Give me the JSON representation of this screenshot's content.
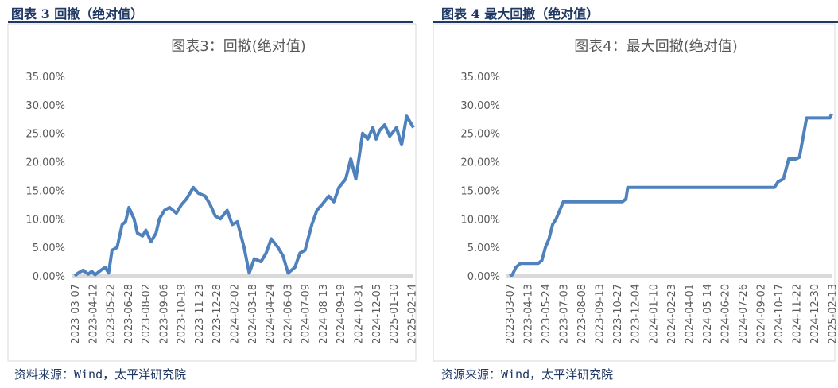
{
  "colors": {
    "header": "#1f3864",
    "line": "#4f81bd",
    "axis": "#d9d9d9",
    "text": "#595959"
  },
  "panels": [
    {
      "figure_title": "图表 3 回撤（绝对值）",
      "source": "资料来源：Wind，太平洋研究院",
      "chart_data": {
        "type": "line",
        "title": "图表3：回撤(绝对值)",
        "y_ticks": [
          "35.00%",
          "30.00%",
          "25.00%",
          "20.00%",
          "15.00%",
          "10.00%",
          "5.00%",
          "0.00%"
        ],
        "ylim": [
          0,
          35
        ],
        "x_ticks": [
          "2023-03-07",
          "2023-04-12",
          "2023-05-22",
          "2023-06-28",
          "2023-08-02",
          "2023-09-06",
          "2023-10-19",
          "2023-11-23",
          "2023-12-28",
          "2024-02-02",
          "2024-03-18",
          "2024-04-24",
          "2024-06-03",
          "2024-07-09",
          "2024-08-13",
          "2024-09-19",
          "2024-10-31",
          "2024-12-05",
          "2025-01-10",
          "2025-02-14"
        ],
        "series": [
          {
            "x": [
              0,
              0.2,
              0.5,
              0.8,
              1.0,
              1.2,
              1.5,
              1.8,
              2.0,
              2.2,
              2.5,
              2.8,
              3.0,
              3.2,
              3.5,
              3.7,
              4.0,
              4.2,
              4.5,
              4.8,
              5.0,
              5.3,
              5.6,
              6.0,
              6.3,
              6.6,
              7.0,
              7.3,
              7.7,
              8.0,
              8.3,
              8.6,
              9.0,
              9.3,
              9.6,
              10.0,
              10.3,
              10.6,
              11.0,
              11.3,
              11.6,
              12.0,
              12.3,
              12.6,
              13.0,
              13.3,
              13.6,
              14.0,
              14.3,
              14.6,
              15.0,
              15.3,
              15.6,
              16.0,
              16.3,
              16.6,
              17.0,
              17.3,
              17.6,
              17.8,
              18.0,
              18.3,
              18.6,
              19.0,
              19.3,
              19.6,
              20.0
            ],
            "values": [
              0.0,
              0.5,
              1.0,
              0.3,
              0.8,
              0.2,
              0.9,
              1.5,
              0.5,
              4.5,
              5.0,
              9.0,
              9.5,
              12.0,
              10.0,
              7.5,
              7.0,
              8.0,
              6.0,
              7.5,
              10.0,
              11.5,
              12.0,
              11.0,
              12.5,
              13.5,
              15.5,
              14.5,
              14.0,
              12.5,
              10.5,
              10.0,
              11.5,
              9.0,
              9.5,
              5.0,
              0.5,
              3.0,
              2.5,
              4.0,
              6.5,
              5.0,
              3.5,
              0.5,
              1.5,
              4.0,
              4.5,
              9.0,
              11.5,
              12.5,
              14.0,
              13.0,
              15.5,
              17.0,
              20.5,
              17.0,
              25.0,
              24.0,
              26.0,
              24.0,
              25.5,
              26.5,
              24.5,
              26.0,
              23.0,
              28.0,
              26.0
            ]
          }
        ]
      }
    },
    {
      "figure_title": "图表 4 最大回撤（绝对值）",
      "source": "资源来源：Wind，太平洋研究院",
      "chart_data": {
        "type": "line",
        "title": "图表4：最大回撤(绝对值)",
        "y_ticks": [
          "35.00%",
          "30.00%",
          "25.00%",
          "20.00%",
          "15.00%",
          "10.00%",
          "5.00%",
          "0.00%"
        ],
        "ylim": [
          0,
          35
        ],
        "x_ticks": [
          "2023-03-07",
          "2023-04-13",
          "2023-05-24",
          "2023-07-03",
          "2023-08-08",
          "2023-09-13",
          "2023-10-27",
          "2023-12-04",
          "2024-01-10",
          "2024-02-23",
          "2024-04-01",
          "2024-05-14",
          "2024-06-20",
          "2024-07-26",
          "2024-09-02",
          "2024-10-17",
          "2024-11-22",
          "2024-12-30",
          "2025-02-13"
        ],
        "series": [
          {
            "x": [
              0,
              0.15,
              0.35,
              0.6,
              1.0,
              1.6,
              1.8,
              2.0,
              2.2,
              2.4,
              2.6,
              2.8,
              3.0,
              3.3,
              3.6,
              4.0,
              5.0,
              6.0,
              6.3,
              6.5,
              6.6,
              7.0,
              8.0,
              9.0,
              10.0,
              11.0,
              12.0,
              13.0,
              14.0,
              14.8,
              15.0,
              15.3,
              15.6,
              16.0,
              16.2,
              16.6,
              17.0,
              17.5,
              17.9,
              18.0
            ],
            "values": [
              0.0,
              0.2,
              1.5,
              2.2,
              2.2,
              2.2,
              2.7,
              5.0,
              6.5,
              9.0,
              10.0,
              11.5,
              13.0,
              13.0,
              13.0,
              13.0,
              13.0,
              13.0,
              13.0,
              13.5,
              15.5,
              15.5,
              15.5,
              15.5,
              15.5,
              15.5,
              15.5,
              15.5,
              15.5,
              15.5,
              16.5,
              17.0,
              20.5,
              20.5,
              20.8,
              27.7,
              27.7,
              27.7,
              27.7,
              28.4
            ]
          }
        ]
      }
    }
  ]
}
